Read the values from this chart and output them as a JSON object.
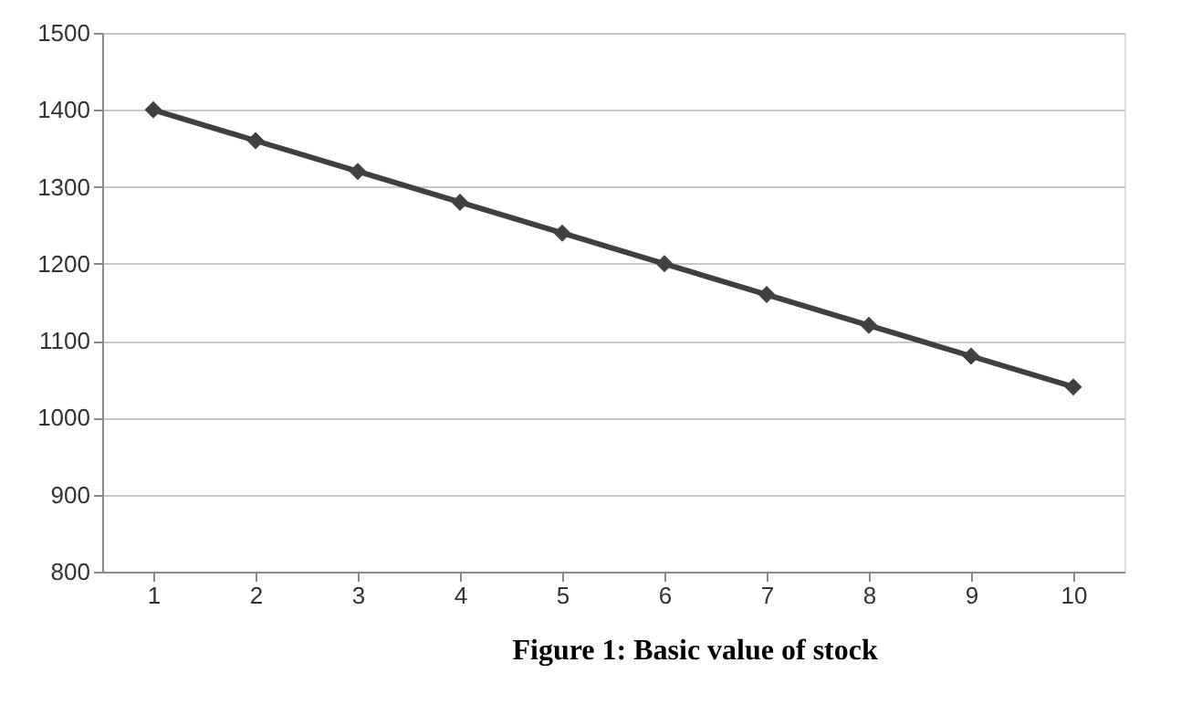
{
  "chart_data": {
    "type": "line",
    "categories": [
      "1",
      "2",
      "3",
      "4",
      "5",
      "6",
      "7",
      "8",
      "9",
      "10"
    ],
    "series": [
      {
        "color": "#404040",
        "values": [
          1400,
          1360,
          1320,
          1280,
          1240,
          1200,
          1160,
          1120,
          1080,
          1040
        ]
      }
    ],
    "ylim": [
      800,
      1500
    ],
    "yticks": [
      800,
      900,
      1000,
      1100,
      1200,
      1300,
      1400,
      1500
    ],
    "grid": "y",
    "marker": "diamond",
    "line_style": "solid",
    "annotations": [
      "Figure 1: Basic value of stock"
    ]
  }
}
